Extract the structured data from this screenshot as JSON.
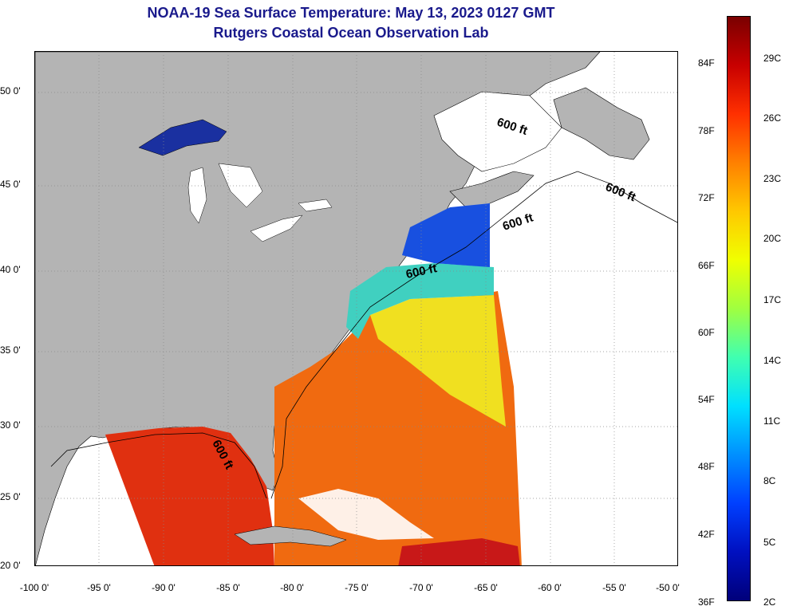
{
  "title": {
    "line1": "NOAA-19 Sea Surface Temperature:  May 13, 2023 0127 GMT",
    "line2": "Rutgers Coastal Ocean Observation Lab"
  },
  "map": {
    "lat_ticks": [
      "50 0'",
      "45 0'",
      "40 0'",
      "35 0'",
      "30 0'",
      "25 0'",
      "20 0'"
    ],
    "lon_ticks": [
      "-100 0'",
      "-95 0'",
      "-90 0'",
      "-85 0'",
      "-80 0'",
      "-75 0'",
      "-70 0'",
      "-65 0'",
      "-60 0'",
      "-55 0'",
      "-50 0'"
    ],
    "contour_labels": [
      "600 ft",
      "600 ft",
      "600 ft",
      "600 ft",
      "600 ft"
    ],
    "colors": {
      "land": "#b4b4b4",
      "no_data": "#ffffff",
      "grid": "#888888"
    }
  },
  "colorbar": {
    "f_labels": [
      "84F",
      "78F",
      "72F",
      "66F",
      "60F",
      "54F",
      "48F",
      "42F",
      "36F"
    ],
    "c_labels": [
      "29C",
      "26C",
      "23C",
      "20C",
      "17C",
      "14C",
      "11C",
      "8C",
      "5C",
      "2C"
    ],
    "gradient": [
      "#7a0000",
      "#c80000",
      "#ff3000",
      "#ff8000",
      "#ffc800",
      "#f0ff00",
      "#a0ff40",
      "#40ffb0",
      "#00e0ff",
      "#0090ff",
      "#0040ff",
      "#0010c0",
      "#00007a"
    ]
  }
}
